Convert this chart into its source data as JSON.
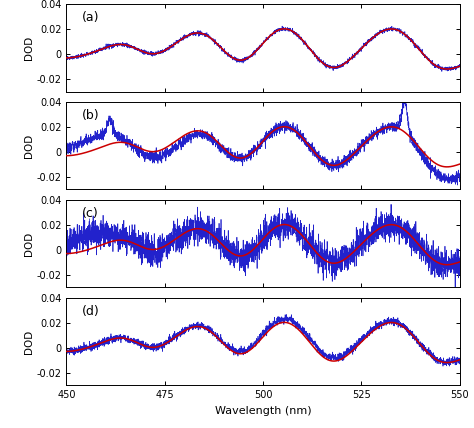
{
  "xlabel": "Wavelength (nm)",
  "ylabel": "DOD",
  "xlim": [
    450,
    550
  ],
  "ylim": [
    -0.03,
    0.04
  ],
  "yticks": [
    -0.02,
    0,
    0.02,
    0.04
  ],
  "xticks": [
    450,
    475,
    500,
    525,
    550
  ],
  "panels": [
    "(a)",
    "(b)",
    "(c)",
    "(d)"
  ],
  "red_color": "#cc0000",
  "blue_color": "#2222cc",
  "background": "#ffffff",
  "panel_noise": [
    0.0008,
    0.0022,
    0.006,
    0.0015
  ],
  "panel_seeds": [
    11,
    22,
    33,
    44
  ]
}
